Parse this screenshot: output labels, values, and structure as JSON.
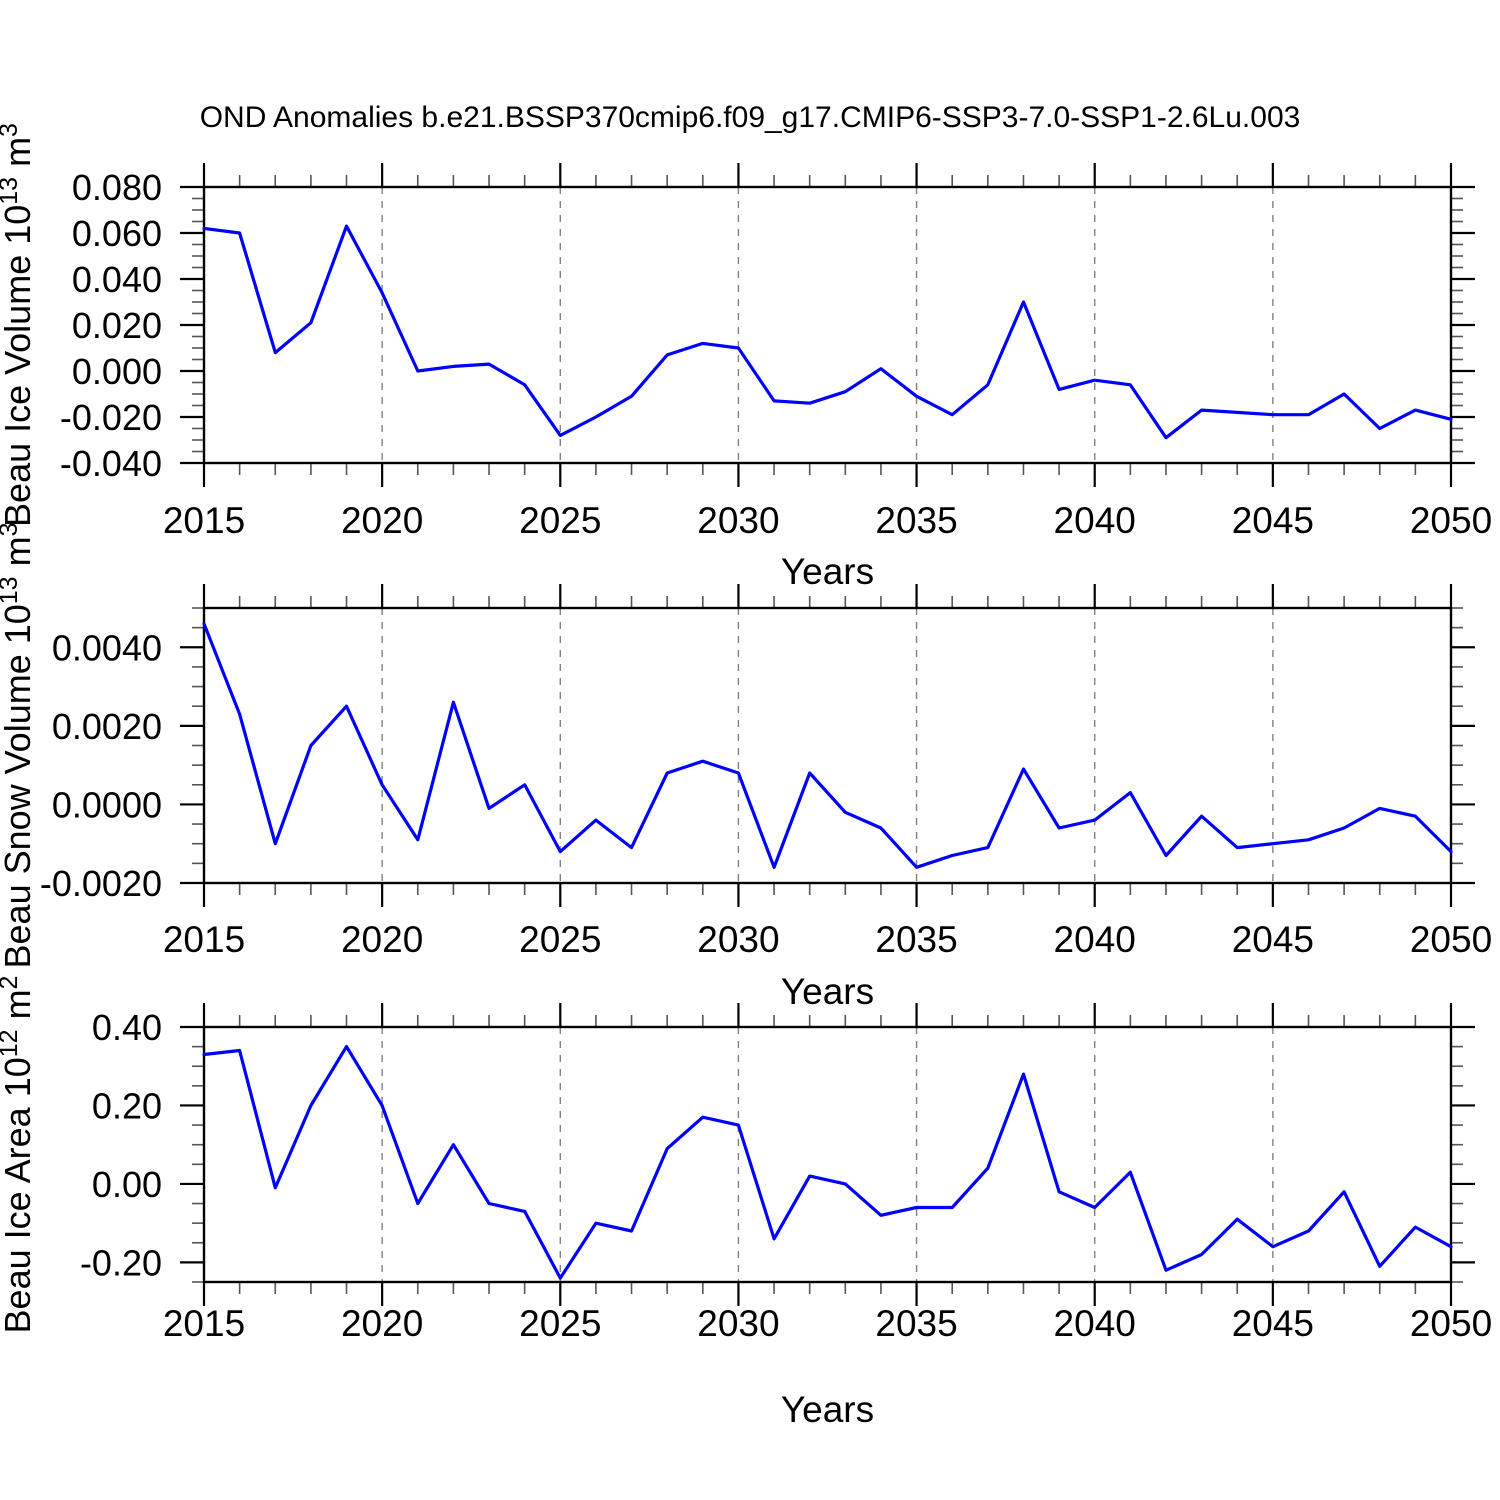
{
  "title": "OND Anomalies b.e21.BSSP370cmip6.f09_g17.CMIP6-SSP3-7.0-SSP1-2.6Lu.003",
  "colors": {
    "line": "#0000ff",
    "grid": "#808080",
    "axis": "#000000",
    "minor_tick": "#555555"
  },
  "x_axis": {
    "label": "Years",
    "range": [
      2015,
      2050
    ],
    "major_ticks": [
      2015,
      2020,
      2025,
      2030,
      2035,
      2040,
      2045,
      2050
    ],
    "minor_step": 1,
    "grid_years": [
      2020,
      2025,
      2030,
      2035,
      2040,
      2045
    ]
  },
  "chart_data": [
    {
      "type": "line",
      "name": "beau-ice-volume",
      "ylabel": "Beau Ice Volume 10¹³ m³",
      "ylabel_segments": [
        {
          "t": "Beau Ice Volume 10"
        },
        {
          "t": "13",
          "sup": true
        },
        {
          "t": " m"
        },
        {
          "t": "3",
          "sup": true
        }
      ],
      "xlabel": "Years",
      "ylim": [
        -0.04,
        0.08
      ],
      "y_minor_step": 0.005,
      "yticks": [
        {
          "label": "0.080",
          "value": 0.08
        },
        {
          "label": "0.060",
          "value": 0.06
        },
        {
          "label": "0.040",
          "value": 0.04
        },
        {
          "label": "0.020",
          "value": 0.02
        },
        {
          "label": "0.000",
          "value": 0.0
        },
        {
          "label": "-0.020",
          "value": -0.02
        },
        {
          "label": "-0.040",
          "value": -0.04
        }
      ],
      "x": [
        2015,
        2016,
        2017,
        2018,
        2019,
        2020,
        2021,
        2022,
        2023,
        2024,
        2025,
        2026,
        2027,
        2028,
        2029,
        2030,
        2031,
        2032,
        2033,
        2034,
        2035,
        2036,
        2037,
        2038,
        2039,
        2040,
        2041,
        2042,
        2043,
        2044,
        2045,
        2046,
        2047,
        2048,
        2049,
        2050
      ],
      "values": [
        0.062,
        0.06,
        0.008,
        0.021,
        0.063,
        0.034,
        0.0,
        0.002,
        0.003,
        -0.006,
        -0.028,
        -0.02,
        -0.011,
        0.007,
        0.012,
        0.01,
        -0.013,
        -0.014,
        -0.009,
        0.001,
        -0.011,
        -0.019,
        -0.006,
        0.03,
        -0.008,
        -0.004,
        -0.006,
        -0.029,
        -0.017,
        -0.018,
        -0.019,
        -0.019,
        -0.01,
        -0.025,
        -0.017,
        -0.021
      ]
    },
    {
      "type": "line",
      "name": "beau-snow-volume",
      "ylabel": "Beau Snow Volume 10¹³ m³",
      "ylabel_segments": [
        {
          "t": "Beau Snow Volume 10"
        },
        {
          "t": "13",
          "sup": true
        },
        {
          "t": " m"
        },
        {
          "t": "3",
          "sup": true
        }
      ],
      "xlabel": "Years",
      "ylim": [
        -0.002,
        0.005
      ],
      "y_minor_step": 0.0005,
      "yticks": [
        {
          "label": "0.0040",
          "value": 0.004
        },
        {
          "label": "0.0020",
          "value": 0.002
        },
        {
          "label": "0.0000",
          "value": 0.0
        },
        {
          "label": "-0.0020",
          "value": -0.002
        }
      ],
      "x": [
        2015,
        2016,
        2017,
        2018,
        2019,
        2020,
        2021,
        2022,
        2023,
        2024,
        2025,
        2026,
        2027,
        2028,
        2029,
        2030,
        2031,
        2032,
        2033,
        2034,
        2035,
        2036,
        2037,
        2038,
        2039,
        2040,
        2041,
        2042,
        2043,
        2044,
        2045,
        2046,
        2047,
        2048,
        2049,
        2050
      ],
      "values": [
        0.0046,
        0.0023,
        -0.001,
        0.0015,
        0.0025,
        0.0005,
        -0.0009,
        0.0026,
        -0.0001,
        0.0005,
        -0.0012,
        -0.0004,
        -0.0011,
        0.0008,
        0.0011,
        0.0008,
        -0.0016,
        0.0008,
        -0.0002,
        -0.0006,
        -0.0016,
        -0.0013,
        -0.0011,
        0.0009,
        -0.0006,
        -0.0004,
        0.0003,
        -0.0013,
        -0.0003,
        -0.0011,
        -0.001,
        -0.0009,
        -0.0006,
        -0.0001,
        -0.0003,
        -0.0012
      ]
    },
    {
      "type": "line",
      "name": "beau-ice-area",
      "ylabel": "Beau Ice Area 10¹² m²",
      "ylabel_segments": [
        {
          "t": "Beau Ice Area 10"
        },
        {
          "t": "12",
          "sup": true
        },
        {
          "t": " m"
        },
        {
          "t": "2",
          "sup": true
        }
      ],
      "xlabel": "Years",
      "ylim": [
        -0.25,
        0.4
      ],
      "y_minor_step": 0.05,
      "yticks": [
        {
          "label": "0.40",
          "value": 0.4
        },
        {
          "label": "0.20",
          "value": 0.2
        },
        {
          "label": "0.00",
          "value": 0.0
        },
        {
          "label": "-0.20",
          "value": -0.2
        }
      ],
      "x": [
        2015,
        2016,
        2017,
        2018,
        2019,
        2020,
        2021,
        2022,
        2023,
        2024,
        2025,
        2026,
        2027,
        2028,
        2029,
        2030,
        2031,
        2032,
        2033,
        2034,
        2035,
        2036,
        2037,
        2038,
        2039,
        2040,
        2041,
        2042,
        2043,
        2044,
        2045,
        2046,
        2047,
        2048,
        2049,
        2050
      ],
      "values": [
        0.33,
        0.34,
        -0.01,
        0.2,
        0.35,
        0.2,
        -0.05,
        0.1,
        -0.05,
        -0.07,
        -0.24,
        -0.1,
        -0.12,
        0.09,
        0.17,
        0.15,
        -0.14,
        0.02,
        0.0,
        -0.08,
        -0.06,
        -0.06,
        0.04,
        0.28,
        -0.02,
        -0.06,
        0.03,
        -0.22,
        -0.18,
        -0.09,
        -0.16,
        -0.12,
        -0.02,
        -0.21,
        -0.11,
        -0.16
      ]
    }
  ]
}
